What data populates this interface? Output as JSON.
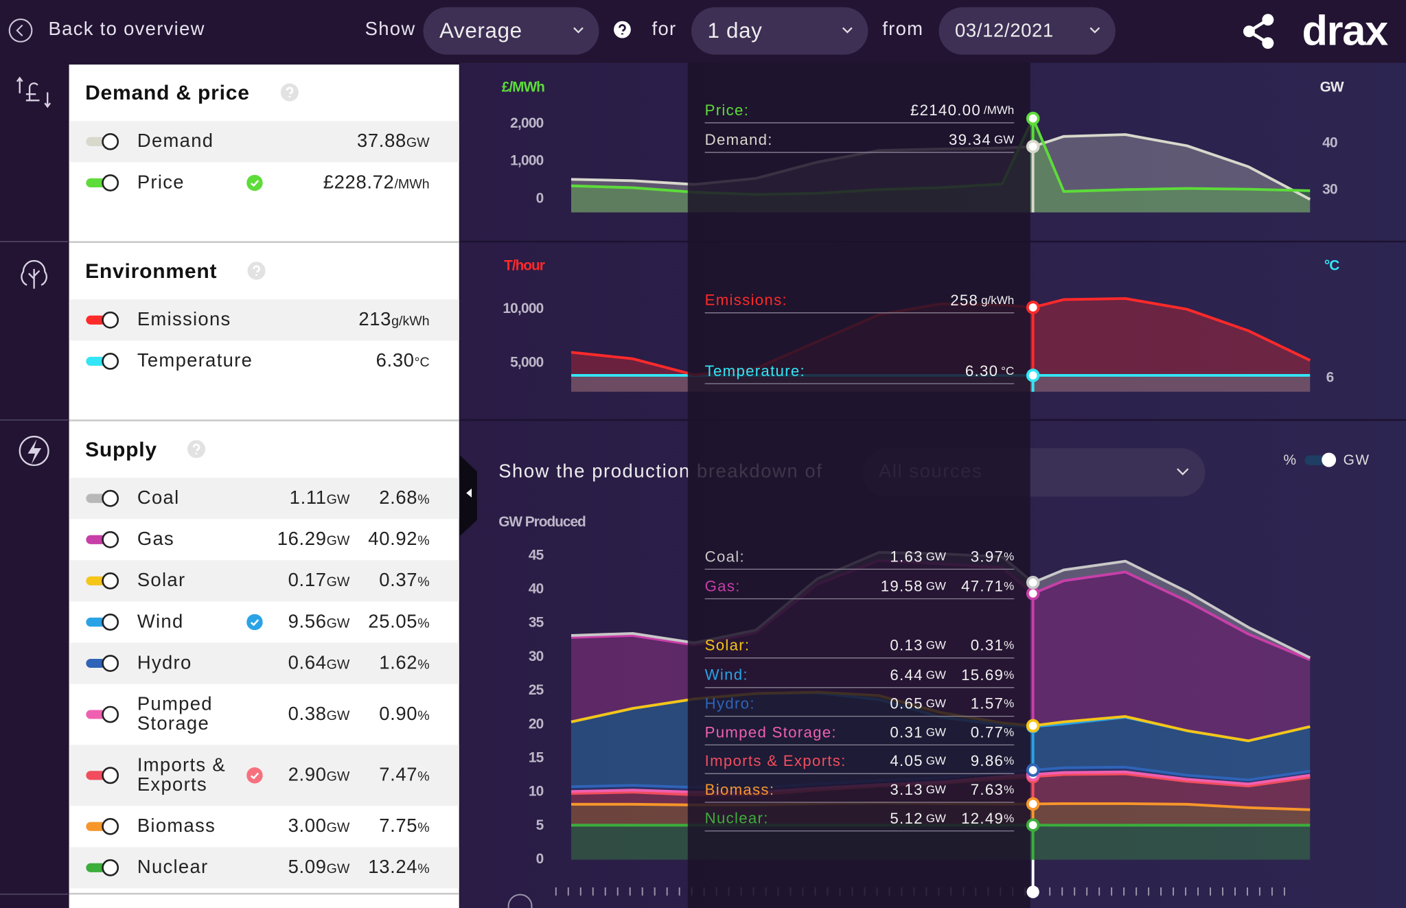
{
  "header": {
    "back": "Back to overview",
    "show_label": "Show",
    "measure": "Average",
    "for_label": "for",
    "period": "1 day",
    "from_label": "from",
    "date": "03/12/2021",
    "logo": "drax"
  },
  "panels": [
    {
      "title": "Demand & price",
      "rows": [
        {
          "name": "Demand",
          "color": "#d8d8cc",
          "value": "37.88",
          "unit": "GW"
        },
        {
          "name": "Price",
          "color": "#5ddc3a",
          "badge": "#5ddc3a",
          "value": "£228.72",
          "unit": "/MWh"
        }
      ]
    },
    {
      "title": "Environment",
      "rows": [
        {
          "name": "Emissions",
          "color": "#ff2a2a",
          "value": "213",
          "unit": "g/kWh"
        },
        {
          "name": "Temperature",
          "color": "#33e6f5",
          "value": "6.30",
          "unit": "°C"
        }
      ]
    },
    {
      "title": "Supply",
      "rows": [
        {
          "name": "Coal",
          "color": "#b8b8b8",
          "value": "1.11",
          "unit": "GW",
          "percent": "2.68",
          "percent_unit": "%"
        },
        {
          "name": "Gas",
          "color": "#c73fa8",
          "value": "16.29",
          "unit": "GW",
          "percent": "40.92",
          "percent_unit": "%"
        },
        {
          "name": "Solar",
          "color": "#f5c518",
          "value": "0.17",
          "unit": "GW",
          "percent": "0.37",
          "percent_unit": "%"
        },
        {
          "name": "Wind",
          "color": "#29a3e6",
          "badge": "#29a3e6",
          "value": "9.56",
          "unit": "GW",
          "percent": "25.05",
          "percent_unit": "%"
        },
        {
          "name": "Hydro",
          "color": "#2f64b8",
          "value": "0.64",
          "unit": "GW",
          "percent": "1.62",
          "percent_unit": "%"
        },
        {
          "name": "Pumped Storage",
          "color": "#f060b0",
          "value": "0.38",
          "unit": "GW",
          "percent": "0.90",
          "percent_unit": "%"
        },
        {
          "name": "Imports & Exports",
          "color": "#f24d5e",
          "badge": "#f7707e",
          "value": "2.90",
          "unit": "GW",
          "percent": "7.47",
          "percent_unit": "%"
        },
        {
          "name": "Biomass",
          "color": "#f7962b",
          "value": "3.00",
          "unit": "GW",
          "percent": "7.75",
          "percent_unit": "%"
        },
        {
          "name": "Nuclear",
          "color": "#3cae3c",
          "value": "5.09",
          "unit": "GW",
          "percent": "13.24",
          "percent_unit": "%"
        }
      ]
    }
  ],
  "breakdown": {
    "label": "Show the production breakdown of",
    "source": "All sources",
    "percent_option": "%",
    "gw_option": "GW"
  },
  "chart_data": [
    {
      "type": "line",
      "y_label": "£/MWh",
      "y2_label": "GW",
      "x": [
        0,
        2,
        4,
        6,
        8,
        10,
        12,
        14,
        15,
        16,
        18,
        20,
        22,
        24
      ],
      "cursor_x": 15,
      "ylim": [
        0,
        2000
      ],
      "yticks": [
        0,
        {
          "value": 1000,
          "label": "1,000"
        },
        {
          "value": 2000,
          "label": "2,000"
        }
      ],
      "y2lim": [
        30,
        40
      ],
      "y2ticks": [
        30,
        40
      ],
      "series": [
        {
          "color": "#5ddc3a",
          "values": [
            350,
            300,
            180,
            120,
            150,
            250,
            300,
            400,
            2140,
            200,
            250,
            280,
            260,
            220
          ]
        },
        {
          "color": "#d8d8cc",
          "axis": "y2",
          "values": [
            32.3,
            32.0,
            31.2,
            32.5,
            36,
            38.5,
            38.8,
            39.0,
            39.34,
            41.5,
            41.9,
            39.5,
            35.0,
            28.0
          ]
        }
      ],
      "tooltip": [
        {
          "label": "Price:",
          "value": "£2140.00",
          "unit": "/MWh"
        },
        {
          "label": "Demand:",
          "value": "39.34",
          "unit": "GW"
        }
      ]
    },
    {
      "type": "line",
      "y_label": "T/hour",
      "y2_label": "°C",
      "x": [
        0,
        2,
        4,
        6,
        8,
        10,
        12,
        14,
        15,
        16,
        18,
        20,
        22,
        24
      ],
      "cursor_x": 15,
      "ylim": [
        3000,
        12000
      ],
      "yticks": [
        {
          "value": 5000,
          "label": "5,000"
        },
        {
          "value": 10000,
          "label": "10,000"
        }
      ],
      "y2lim": [
        6,
        16
      ],
      "y2ticks": [
        6
      ],
      "series": [
        {
          "color": "#ff2a2a",
          "values": [
            6000,
            5400,
            3900,
            4500,
            7000,
            9500,
            10500,
            10400,
            10170,
            10900,
            11000,
            10000,
            8000,
            5250
          ]
        },
        {
          "color": "#33e6f5",
          "axis": "y2",
          "values": [
            6.3,
            6.3,
            6.3,
            6.3,
            6.3,
            6.3,
            6.3,
            6.3,
            6.3,
            6.3,
            6.3,
            6.3,
            6.3,
            6.3
          ]
        }
      ],
      "tooltip": [
        {
          "label": "Emissions:",
          "value": "258",
          "unit": "g/kWh"
        },
        {
          "label": "Temperature:",
          "value": "6.30",
          "unit": "°C"
        }
      ]
    },
    {
      "type": "stacked_area",
      "y_label": "GW Produced",
      "x": [
        0,
        2,
        4,
        6,
        8,
        10,
        12,
        14,
        15,
        16,
        18,
        20,
        22,
        24
      ],
      "cursor_x": 15,
      "ylim": [
        0,
        45
      ],
      "yticks": [
        0,
        5,
        10,
        15,
        20,
        25,
        30,
        35,
        40,
        45
      ],
      "series": [
        {
          "color": "#c8c8c8",
          "values": [
            0.3,
            0.3,
            0.3,
            0.4,
            0.8,
            1.2,
            1.5,
            1.6,
            1.63,
            1.6,
            1.6,
            1.4,
            1.0,
            0.3
          ]
        },
        {
          "color": "#c73fa8",
          "values": [
            12.5,
            10.8,
            8.0,
            9,
            16,
            20,
            22,
            23,
            19.58,
            20.9,
            21.4,
            19.2,
            15.8,
            9.9
          ]
        },
        {
          "color": "#f5c518",
          "values": [
            0,
            0,
            0,
            0,
            0.1,
            0.6,
            0.7,
            0.3,
            0.13,
            0.3,
            0.1,
            0,
            0,
            0
          ]
        },
        {
          "color": "#29a3e6",
          "values": [
            9.6,
            11.4,
            13.1,
            14,
            13.5,
            12,
            9,
            7,
            6.44,
            6.5,
            7.4,
            6.6,
            5.8,
            6.6
          ]
        },
        {
          "color": "#2f64b8",
          "values": [
            0.7,
            0.7,
            0.7,
            0.6,
            0.6,
            0.6,
            0.6,
            0.65,
            0.65,
            0.7,
            0.7,
            0.6,
            0.6,
            0.6
          ]
        },
        {
          "color": "#f060b0",
          "values": [
            0.3,
            0.3,
            0.4,
            0.4,
            0.3,
            0.2,
            0.2,
            0.3,
            0.31,
            0.3,
            0.3,
            0.3,
            0.3,
            0.3
          ]
        },
        {
          "color": "#f24d5e",
          "values": [
            1.6,
            1.8,
            1.5,
            1.5,
            2.0,
            2.5,
            3.0,
            3.8,
            4.05,
            4.3,
            4.4,
            3.4,
            3.2,
            4.8
          ]
        },
        {
          "color": "#f7962b",
          "values": [
            3.1,
            3.1,
            3.0,
            3.0,
            3.2,
            3.3,
            3.2,
            3.1,
            3.13,
            3.2,
            3.2,
            3.1,
            2.6,
            2.3
          ]
        },
        {
          "color": "#3cae3c",
          "values": [
            5.1,
            5.1,
            5.1,
            5.1,
            5.1,
            5.1,
            5.1,
            5.1,
            5.12,
            5.1,
            5.1,
            5.1,
            5.1,
            5.1
          ]
        }
      ],
      "tooltip": [
        {
          "label": "Coal:",
          "value": "1.63",
          "unit": "GW",
          "percent": "3.97",
          "percent_unit": "%"
        },
        {
          "label": "Gas:",
          "value": "19.58",
          "unit": "GW",
          "percent": "47.71",
          "percent_unit": "%"
        },
        {
          "label": "Solar:",
          "value": "0.13",
          "unit": "GW",
          "percent": "0.31",
          "percent_unit": "%"
        },
        {
          "label": "Wind:",
          "value": "6.44",
          "unit": "GW",
          "percent": "15.69",
          "percent_unit": "%"
        },
        {
          "label": "Hydro:",
          "value": "0.65",
          "unit": "GW",
          "percent": "1.57",
          "percent_unit": "%"
        },
        {
          "label": "Pumped Storage:",
          "value": "0.31",
          "unit": "GW",
          "percent": "0.77",
          "percent_unit": "%"
        },
        {
          "label": "Imports & Exports:",
          "value": "4.05",
          "unit": "GW",
          "percent": "9.86",
          "percent_unit": "%"
        },
        {
          "label": "Biomass:",
          "value": "3.13",
          "unit": "GW",
          "percent": "7.63",
          "percent_unit": "%"
        },
        {
          "label": "Nuclear:",
          "value": "5.12",
          "unit": "GW",
          "percent": "12.49",
          "percent_unit": "%"
        }
      ]
    }
  ]
}
